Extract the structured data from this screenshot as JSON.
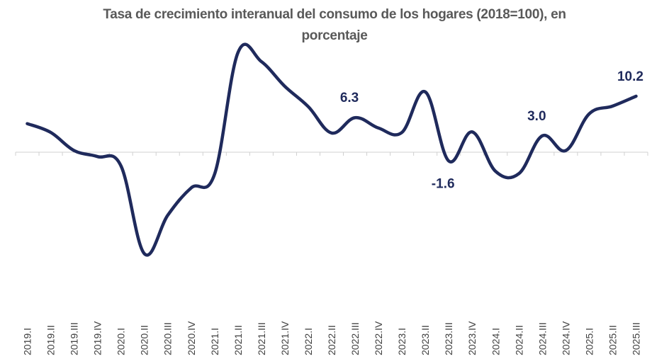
{
  "chart_data": {
    "type": "line",
    "title_line1": "Tasa de crecimiento interanual del consumo de los hogares (2018=100), en",
    "title_line2": "porcentaje",
    "categories": [
      "2019.I",
      "2019.II",
      "2019.III",
      "2019.IV",
      "2020.I",
      "2020.II",
      "2020.III",
      "2020.IV",
      "2021.I",
      "2021.II",
      "2021.III",
      "2021.IV",
      "2022.I",
      "2022.II",
      "2022.III",
      "2022.IV",
      "2023.I",
      "2023.II",
      "2023.III",
      "2023.IV",
      "2024.I",
      "2024.II",
      "2024.III",
      "2024.IV",
      "2025.I",
      "2025.II",
      "2025.III"
    ],
    "values": [
      5.2,
      3.6,
      0.3,
      -0.8,
      -2.5,
      -18.5,
      -11.5,
      -6.5,
      -4.0,
      18.2,
      16.5,
      12.0,
      8.3,
      3.5,
      6.3,
      4.4,
      3.6,
      11.0,
      -1.6,
      3.7,
      -3.5,
      -3.9,
      3.0,
      0.3,
      7.0,
      8.4,
      10.2
    ],
    "color": "#1f2a5c",
    "ylim": [
      -20,
      20
    ],
    "xlabel": "",
    "ylabel": "",
    "grid": false,
    "annotations": [
      {
        "index": 14,
        "text": "6.3",
        "position": "above"
      },
      {
        "index": 18,
        "text": "-1.6",
        "position": "below"
      },
      {
        "index": 22,
        "text": "3.0",
        "position": "above"
      },
      {
        "index": 26,
        "text": "10.2",
        "position": "above"
      }
    ]
  }
}
